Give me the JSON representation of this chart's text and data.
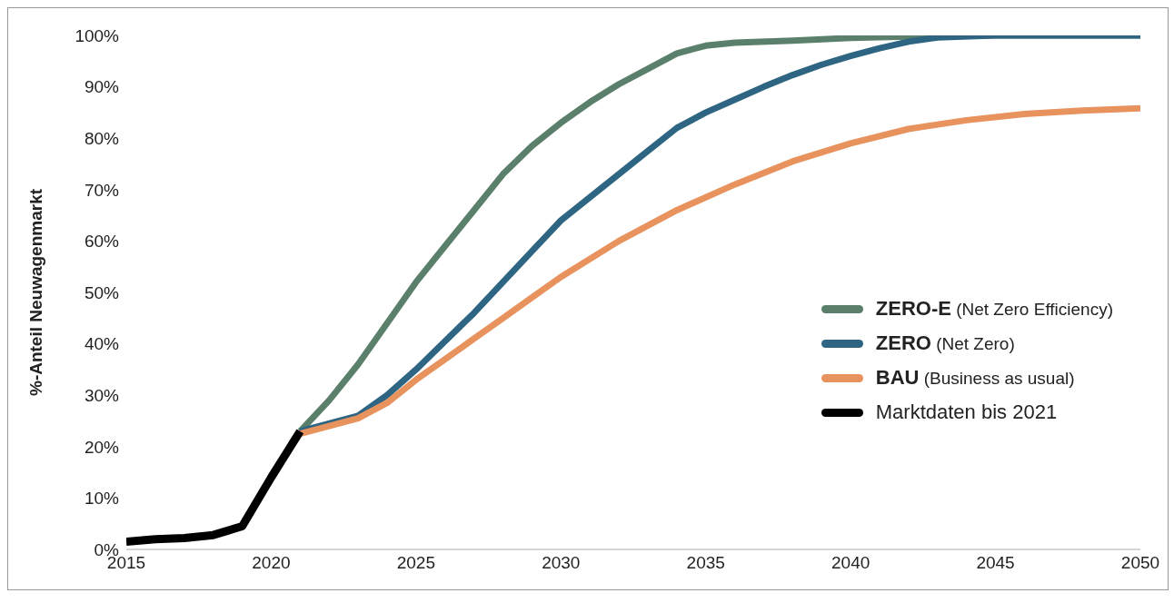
{
  "chart_data": {
    "type": "line",
    "ylabel": "%-Anteil Neuwagenmarkt",
    "xlim": [
      2015,
      2050
    ],
    "xticks": [
      2015,
      2020,
      2025,
      2030,
      2035,
      2040,
      2045,
      2050
    ],
    "ylim": [
      0,
      100
    ],
    "yticks": [
      {
        "value": 0,
        "label": "0%"
      },
      {
        "value": 10,
        "label": "10%"
      },
      {
        "value": 20,
        "label": "20%"
      },
      {
        "value": 30,
        "label": "30%"
      },
      {
        "value": 40,
        "label": "40%"
      },
      {
        "value": 50,
        "label": "50%"
      },
      {
        "value": 60,
        "label": "60%"
      },
      {
        "value": 70,
        "label": "70%"
      },
      {
        "value": 80,
        "label": "80%"
      },
      {
        "value": 90,
        "label": "90%"
      },
      {
        "value": 100,
        "label": "100%"
      }
    ],
    "grid": false,
    "legend": "right",
    "marker": "none",
    "line_style": "solid",
    "series": [
      {
        "name": "ZERO-E (Net Zero Efficiency)",
        "color": "#5a7f6a",
        "x": [
          2021,
          2022,
          2023,
          2024,
          2025,
          2026,
          2027,
          2028,
          2029,
          2030,
          2031,
          2032,
          2033,
          2034,
          2035,
          2036,
          2038,
          2040,
          2042,
          2045,
          2050
        ],
        "values": [
          23,
          29,
          36,
          44,
          52,
          59,
          66,
          73,
          78.5,
          83,
          87,
          90.5,
          93.5,
          96.5,
          98,
          98.6,
          99,
          99.5,
          99.8,
          100,
          100
        ]
      },
      {
        "name": "ZERO (Net Zero)",
        "color": "#2e6582",
        "x": [
          2021,
          2022,
          2023,
          2024,
          2025,
          2026,
          2027,
          2028,
          2029,
          2030,
          2031,
          2032,
          2033,
          2034,
          2035,
          2036,
          2037,
          2038,
          2039,
          2040,
          2041,
          2042,
          2043,
          2045,
          2050
        ],
        "values": [
          23,
          24.5,
          26,
          30,
          35,
          40.5,
          46,
          52,
          58,
          64,
          68.5,
          73,
          77.5,
          82,
          85,
          87.5,
          90,
          92.3,
          94.3,
          96,
          97.5,
          98.8,
          99.6,
          100,
          100
        ]
      },
      {
        "name": "BAU (Business as usual)",
        "color": "#e8925e",
        "x": [
          2021,
          2022,
          2023,
          2024,
          2025,
          2026,
          2027,
          2028,
          2029,
          2030,
          2032,
          2034,
          2036,
          2038,
          2040,
          2042,
          2044,
          2046,
          2048,
          2050
        ],
        "values": [
          22.5,
          24,
          25.5,
          28.5,
          33,
          37,
          41,
          45,
          49,
          53,
          60,
          66,
          71,
          75.5,
          79,
          81.8,
          83.5,
          84.7,
          85.4,
          85.8
        ]
      },
      {
        "name": "Marktdaten bis 2021",
        "color": "#000000",
        "x": [
          2015,
          2016,
          2017,
          2018,
          2019,
          2020,
          2021
        ],
        "values": [
          1.5,
          2,
          2.2,
          2.8,
          4.5,
          14,
          23
        ]
      }
    ]
  }
}
